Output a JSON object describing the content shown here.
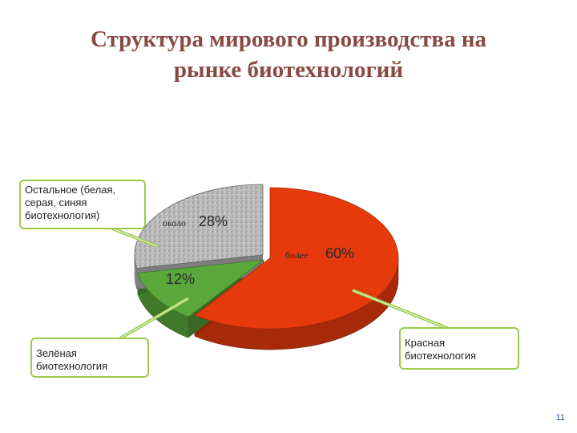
{
  "slide": {
    "title_line1": "Структура мирового производства на",
    "title_line2": "рынке биотехнологий",
    "page_number": "11"
  },
  "chart_data": {
    "type": "pie",
    "title": "Структура мирового производства на рынке биотехнологий",
    "style": "3d-exploded",
    "slices": [
      {
        "category": "Красная биотехнология",
        "value": 60,
        "prefix": "более",
        "value_label": "60%",
        "color": "#e63a0c"
      },
      {
        "category": "Зелёная биотехнология",
        "value": 12,
        "prefix": "",
        "value_label": "12%",
        "color": "#5aa83c"
      },
      {
        "category": "Остальное (белая, серая, синяя биотехнология)",
        "value": 28,
        "prefix": "около",
        "value_label": "28%",
        "color": "#b8b8b8"
      }
    ],
    "callouts": {
      "other": {
        "line1": "Остальное  (белая,",
        "line2": "серая, синяя",
        "line3": "биотехнология)"
      },
      "green": {
        "line1": "Зелёная",
        "line2": "биотехнология"
      },
      "red": {
        "line1": "Красная",
        "line2": "биотехнология"
      }
    },
    "leader_color": "#9acb4c"
  }
}
